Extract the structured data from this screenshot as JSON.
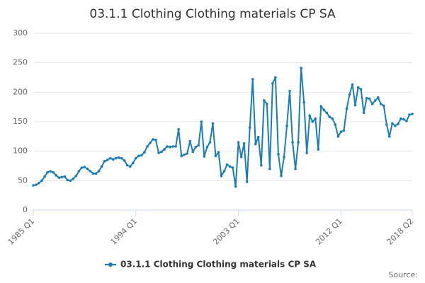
{
  "chart_data": {
    "type": "line",
    "title": "03.1.1 Clothing Clothing materials CP SA",
    "source": "Source:",
    "categories": [
      "1985 Q1",
      null,
      null,
      null,
      null,
      null,
      null,
      null,
      null,
      null,
      null,
      null,
      null,
      null,
      null,
      null,
      null,
      null,
      null,
      null,
      null,
      null,
      null,
      null,
      null,
      null,
      null,
      null,
      null,
      null,
      null,
      null,
      null,
      null,
      null,
      null,
      "1994 Q1",
      null,
      null,
      null,
      null,
      null,
      null,
      null,
      null,
      null,
      null,
      null,
      null,
      null,
      null,
      null,
      null,
      null,
      null,
      null,
      null,
      null,
      null,
      null,
      null,
      null,
      null,
      null,
      null,
      null,
      null,
      null,
      null,
      null,
      null,
      null,
      "2003 Q1",
      null,
      null,
      null,
      null,
      null,
      null,
      null,
      null,
      null,
      null,
      null,
      null,
      null,
      null,
      null,
      null,
      null,
      null,
      null,
      null,
      null,
      null,
      null,
      null,
      null,
      null,
      null,
      null,
      null,
      null,
      null,
      null,
      null,
      null,
      null,
      "2012 Q1",
      null,
      null,
      null,
      null,
      null,
      null,
      null,
      null,
      null,
      null,
      null,
      null,
      null,
      null,
      null,
      null,
      null,
      null,
      null,
      null,
      null,
      null,
      null,
      null,
      "2018 Q2"
    ],
    "series": [
      {
        "name": "03.1.1 Clothing Clothing materials CP SA",
        "color": "#1a7db5",
        "values": [
          42,
          43,
          46,
          50,
          57,
          64,
          66,
          64,
          59,
          55,
          56,
          57,
          51,
          50,
          53,
          58,
          66,
          72,
          73,
          70,
          66,
          62,
          62,
          66,
          74,
          83,
          85,
          88,
          86,
          88,
          89,
          88,
          84,
          76,
          74,
          80,
          88,
          92,
          93,
          98,
          108,
          114,
          120,
          119,
          97,
          99,
          103,
          108,
          107,
          108,
          108,
          137,
          92,
          94,
          96,
          117,
          99,
          107,
          110,
          150,
          91,
          107,
          115,
          147,
          92,
          98,
          58,
          66,
          77,
          74,
          72,
          40,
          115,
          90,
          113,
          48,
          140,
          222,
          112,
          124,
          76,
          186,
          180,
          70,
          215,
          225,
          95,
          58,
          90,
          143,
          202,
          115,
          70,
          115,
          241,
          183,
          97,
          160,
          150,
          155,
          103,
          176,
          170,
          165,
          158,
          155,
          145,
          125,
          133,
          135,
          172,
          196,
          213,
          178,
          208,
          205,
          165,
          190,
          189,
          180,
          186,
          191,
          180,
          177,
          145,
          125,
          147,
          143,
          146,
          155,
          154,
          151,
          162,
          163
        ]
      }
    ],
    "ylim": [
      0,
      300
    ],
    "yticks": [
      0,
      50,
      100,
      150,
      200,
      250,
      300
    ],
    "grid": true
  }
}
